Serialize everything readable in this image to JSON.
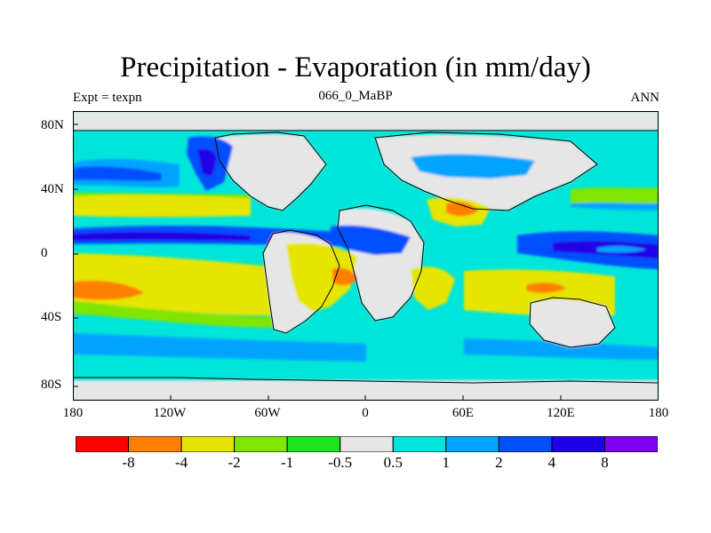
{
  "title": "Precipitation - Evaporation (in mm/day)",
  "subtitle_left": "Expt = texpn",
  "subtitle_center": "066_0_MaBP",
  "subtitle_right": "ANN",
  "lat_ticks": [
    "80N",
    "40N",
    "0",
    "40S",
    "80S"
  ],
  "lon_ticks": [
    "180",
    "120W",
    "60W",
    "0",
    "60E",
    "120E",
    "180"
  ],
  "colorbar": {
    "labels": [
      "-8",
      "-4",
      "-2",
      "-1",
      "-0.5",
      "0.5",
      "1",
      "2",
      "4",
      "8"
    ],
    "colors": [
      "#ff0000",
      "#ff7f00",
      "#e5e500",
      "#80e500",
      "#1ee51e",
      "#e6e6e6",
      "#00e5d9",
      "#00a4ff",
      "#0050ff",
      "#2000e5",
      "#8000f0"
    ]
  },
  "legend": {
    "ocean_bg": "#00e5d9",
    "land_bg": "#e6e6e6",
    "coast_color": "#000000"
  }
}
